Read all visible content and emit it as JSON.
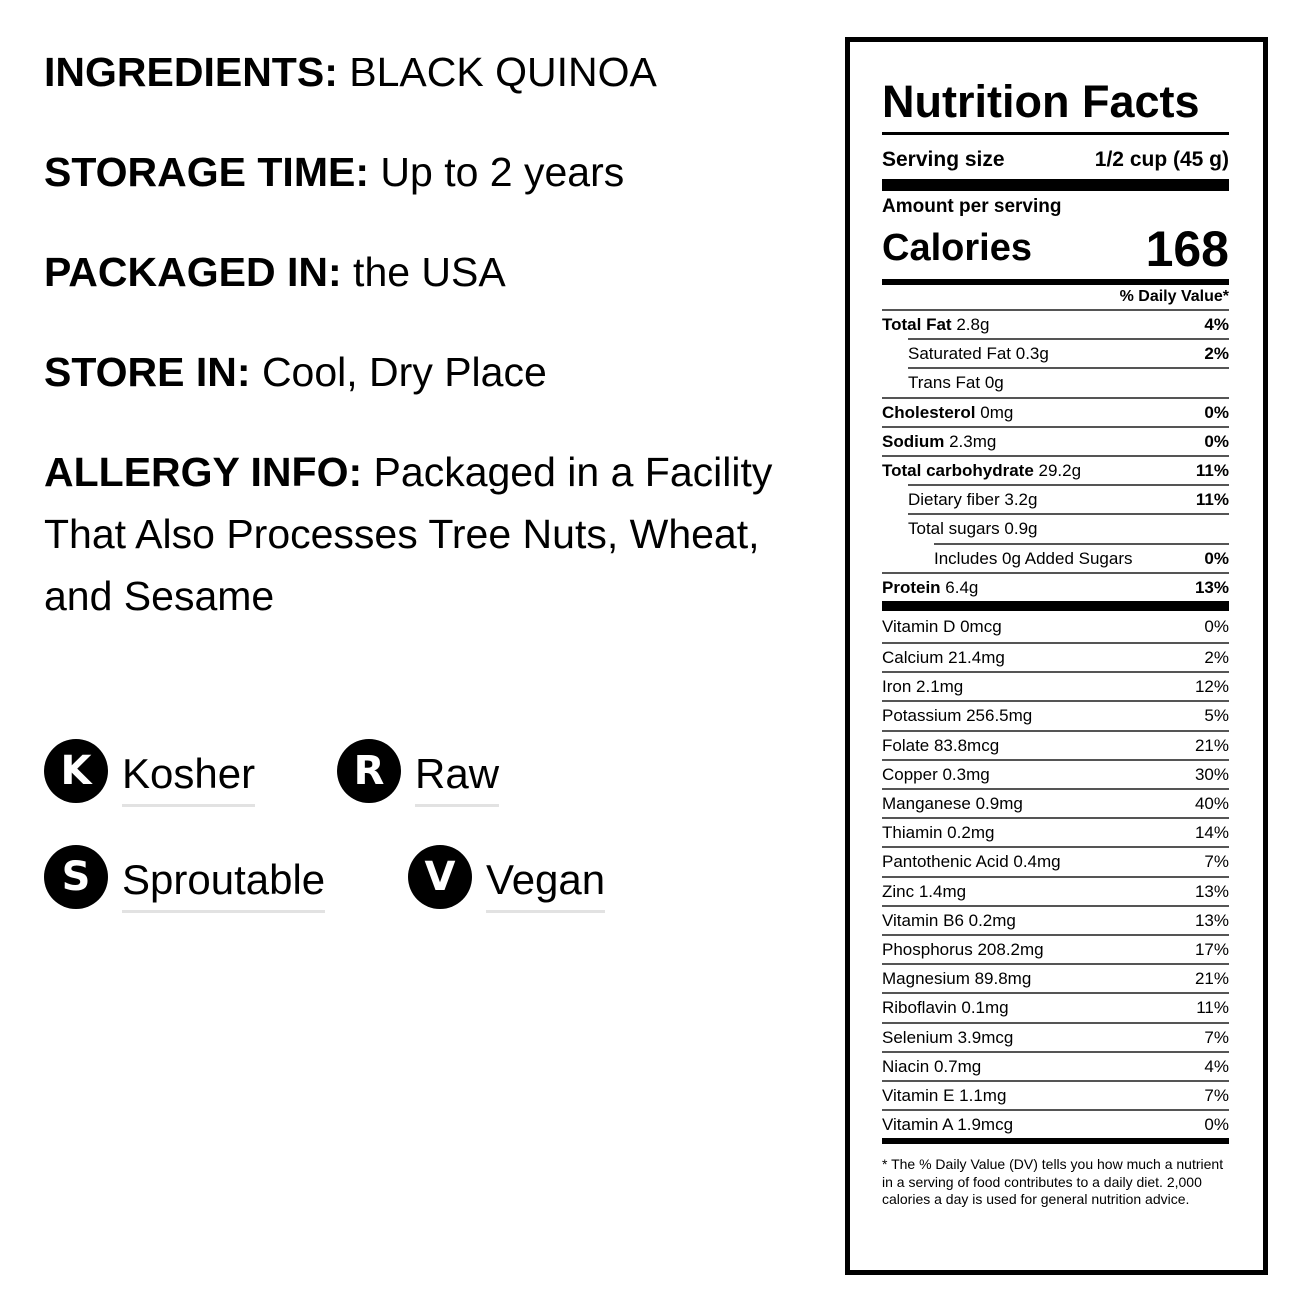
{
  "info": [
    {
      "label": "INGREDIENTS:",
      "value": "BLACK QUINOA"
    },
    {
      "label": "STORAGE TIME:",
      "value": "Up to 2 years"
    },
    {
      "label": "PACKAGED IN:",
      "value": "the USA"
    },
    {
      "label": "STORE IN:",
      "value": "Cool, Dry Place"
    },
    {
      "label": "ALLERGY INFO:",
      "value": "Packaged in a Facility That Also Processes Tree Nuts, Wheat, and Sesame"
    }
  ],
  "badges": [
    {
      "letter": "K",
      "label": "Kosher"
    },
    {
      "letter": "R",
      "label": "Raw"
    },
    {
      "letter": "S",
      "label": "Sproutable"
    },
    {
      "letter": "V",
      "label": "Vegan"
    }
  ],
  "nutrition": {
    "title": "Nutrition Facts",
    "serving_label": "Serving size",
    "serving_value": "1/2 cup (45 g)",
    "amount_per_serving": "Amount per serving",
    "calories_label": "Calories",
    "calories_value": "168",
    "dv_header": "% Daily Value*",
    "nutrients": [
      {
        "name": "Total Fat",
        "amount": "2.8g",
        "dv": "4%",
        "bold": true,
        "indent": 0
      },
      {
        "name": "Saturated Fat",
        "amount": "0.3g",
        "dv": "2%",
        "bold": false,
        "indent": 1
      },
      {
        "name": "Trans Fat",
        "amount": "0g",
        "dv": "",
        "bold": false,
        "indent": 1
      },
      {
        "name": "Cholesterol",
        "amount": "0mg",
        "dv": "0%",
        "bold": true,
        "indent": 0
      },
      {
        "name": "Sodium",
        "amount": "2.3mg",
        "dv": "0%",
        "bold": true,
        "indent": 0
      },
      {
        "name": "Total carbohydrate",
        "amount": "29.2g",
        "dv": "11%",
        "bold": true,
        "indent": 0
      },
      {
        "name": "Dietary fiber",
        "amount": "3.2g",
        "dv": "11%",
        "bold": false,
        "indent": 1
      },
      {
        "name": "Total sugars",
        "amount": "0.9g",
        "dv": "",
        "bold": false,
        "indent": 1
      },
      {
        "name": "Includes 0g Added Sugars",
        "amount": "",
        "dv": "0%",
        "bold": false,
        "indent": 2
      },
      {
        "name": "Protein",
        "amount": "6.4g",
        "dv": "13%",
        "bold": true,
        "indent": 0
      }
    ],
    "vitamins": [
      {
        "name": "Vitamin D 0mcg",
        "dv": "0%"
      },
      {
        "name": "Calcium 21.4mg",
        "dv": "2%"
      },
      {
        "name": "Iron 2.1mg",
        "dv": "12%"
      },
      {
        "name": "Potassium 256.5mg",
        "dv": "5%"
      },
      {
        "name": "Folate 83.8mcg",
        "dv": "21%"
      },
      {
        "name": "Copper 0.3mg",
        "dv": "30%"
      },
      {
        "name": "Manganese 0.9mg",
        "dv": "40%"
      },
      {
        "name": "Thiamin 0.2mg",
        "dv": "14%"
      },
      {
        "name": "Pantothenic Acid 0.4mg",
        "dv": "7%"
      },
      {
        "name": "Zinc 1.4mg",
        "dv": "13%"
      },
      {
        "name": "Vitamin B6 0.2mg",
        "dv": "13%"
      },
      {
        "name": "Phosphorus 208.2mg",
        "dv": "17%"
      },
      {
        "name": "Magnesium 89.8mg",
        "dv": "21%"
      },
      {
        "name": "Riboflavin 0.1mg",
        "dv": "11%"
      },
      {
        "name": "Selenium 3.9mcg",
        "dv": "7%"
      },
      {
        "name": "Niacin 0.7mg",
        "dv": "4%"
      },
      {
        "name": "Vitamin E 1.1mg",
        "dv": "7%"
      },
      {
        "name": "Vitamin A 1.9mcg",
        "dv": "0%"
      }
    ],
    "footnote": "* The % Daily Value (DV) tells you how much a nutrient in a serving of food contributes to a daily diet. 2,000 calories a day is used for general nutrition advice."
  }
}
